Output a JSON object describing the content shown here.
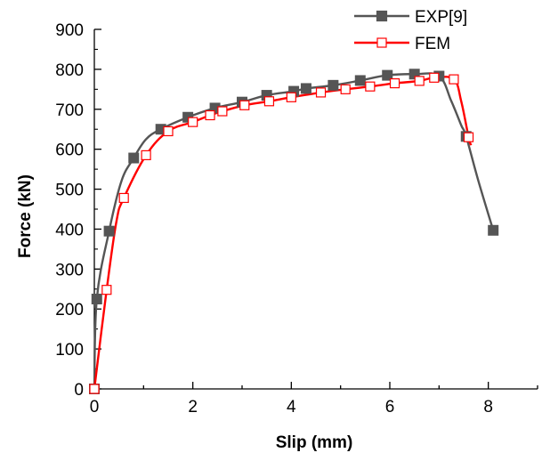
{
  "chart_data": {
    "type": "line",
    "xlabel": "Slip (mm)",
    "ylabel": "Force (kN)",
    "xlim": [
      0,
      9
    ],
    "ylim": [
      0,
      900
    ],
    "xticks": [
      0,
      2,
      4,
      6,
      8
    ],
    "yticks": [
      0,
      100,
      200,
      300,
      400,
      500,
      600,
      700,
      800,
      900
    ],
    "legend_position": "top-right",
    "grid": false,
    "series": [
      {
        "name": "EXP[9]",
        "color": "#555555",
        "marker": "filled-square",
        "markers": [
          {
            "x": 0.0,
            "y": 0
          },
          {
            "x": 0.05,
            "y": 225
          },
          {
            "x": 0.3,
            "y": 395
          },
          {
            "x": 0.8,
            "y": 578
          },
          {
            "x": 1.35,
            "y": 650
          },
          {
            "x": 1.9,
            "y": 680
          },
          {
            "x": 2.45,
            "y": 703
          },
          {
            "x": 3.0,
            "y": 718
          },
          {
            "x": 3.5,
            "y": 735
          },
          {
            "x": 4.05,
            "y": 745
          },
          {
            "x": 4.3,
            "y": 752
          },
          {
            "x": 4.85,
            "y": 760
          },
          {
            "x": 5.4,
            "y": 772
          },
          {
            "x": 5.95,
            "y": 785
          },
          {
            "x": 6.5,
            "y": 788
          },
          {
            "x": 7.0,
            "y": 783
          },
          {
            "x": 7.55,
            "y": 632
          },
          {
            "x": 8.1,
            "y": 397
          }
        ],
        "curve": [
          {
            "x": 0.0,
            "y": 0
          },
          {
            "x": 0.05,
            "y": 225
          },
          {
            "x": 0.3,
            "y": 395
          },
          {
            "x": 0.55,
            "y": 520
          },
          {
            "x": 0.8,
            "y": 578
          },
          {
            "x": 1.05,
            "y": 625
          },
          {
            "x": 1.35,
            "y": 650
          },
          {
            "x": 1.9,
            "y": 680
          },
          {
            "x": 2.45,
            "y": 703
          },
          {
            "x": 3.0,
            "y": 718
          },
          {
            "x": 3.5,
            "y": 735
          },
          {
            "x": 4.05,
            "y": 745
          },
          {
            "x": 4.3,
            "y": 752
          },
          {
            "x": 4.85,
            "y": 760
          },
          {
            "x": 5.4,
            "y": 772
          },
          {
            "x": 5.95,
            "y": 785
          },
          {
            "x": 6.5,
            "y": 788
          },
          {
            "x": 7.0,
            "y": 783
          },
          {
            "x": 7.25,
            "y": 720
          },
          {
            "x": 7.45,
            "y": 660
          },
          {
            "x": 7.55,
            "y": 632
          },
          {
            "x": 7.8,
            "y": 520
          },
          {
            "x": 8.1,
            "y": 397
          }
        ]
      },
      {
        "name": "FEM",
        "color": "#ff0000",
        "marker": "open-square",
        "markers": [
          {
            "x": 0.0,
            "y": 0
          },
          {
            "x": 0.25,
            "y": 248
          },
          {
            "x": 0.6,
            "y": 478
          },
          {
            "x": 1.05,
            "y": 585
          },
          {
            "x": 1.5,
            "y": 645
          },
          {
            "x": 2.0,
            "y": 668
          },
          {
            "x": 2.35,
            "y": 685
          },
          {
            "x": 2.6,
            "y": 695
          },
          {
            "x": 3.05,
            "y": 710
          },
          {
            "x": 3.55,
            "y": 720
          },
          {
            "x": 4.0,
            "y": 730
          },
          {
            "x": 4.6,
            "y": 742
          },
          {
            "x": 5.1,
            "y": 750
          },
          {
            "x": 5.6,
            "y": 757
          },
          {
            "x": 6.1,
            "y": 765
          },
          {
            "x": 6.6,
            "y": 771
          },
          {
            "x": 6.9,
            "y": 779
          },
          {
            "x": 7.3,
            "y": 775
          },
          {
            "x": 7.6,
            "y": 630
          }
        ],
        "curve": [
          {
            "x": 0.0,
            "y": 0
          },
          {
            "x": 0.25,
            "y": 248
          },
          {
            "x": 0.45,
            "y": 420
          },
          {
            "x": 0.6,
            "y": 478
          },
          {
            "x": 1.05,
            "y": 585
          },
          {
            "x": 1.5,
            "y": 645
          },
          {
            "x": 2.0,
            "y": 668
          },
          {
            "x": 2.35,
            "y": 685
          },
          {
            "x": 2.6,
            "y": 695
          },
          {
            "x": 3.05,
            "y": 710
          },
          {
            "x": 3.55,
            "y": 720
          },
          {
            "x": 4.0,
            "y": 730
          },
          {
            "x": 4.6,
            "y": 742
          },
          {
            "x": 5.1,
            "y": 750
          },
          {
            "x": 5.6,
            "y": 757
          },
          {
            "x": 6.1,
            "y": 765
          },
          {
            "x": 6.6,
            "y": 771
          },
          {
            "x": 6.9,
            "y": 779
          },
          {
            "x": 7.3,
            "y": 775
          },
          {
            "x": 7.45,
            "y": 720
          },
          {
            "x": 7.6,
            "y": 630
          },
          {
            "x": 7.65,
            "y": 610
          }
        ]
      }
    ]
  }
}
